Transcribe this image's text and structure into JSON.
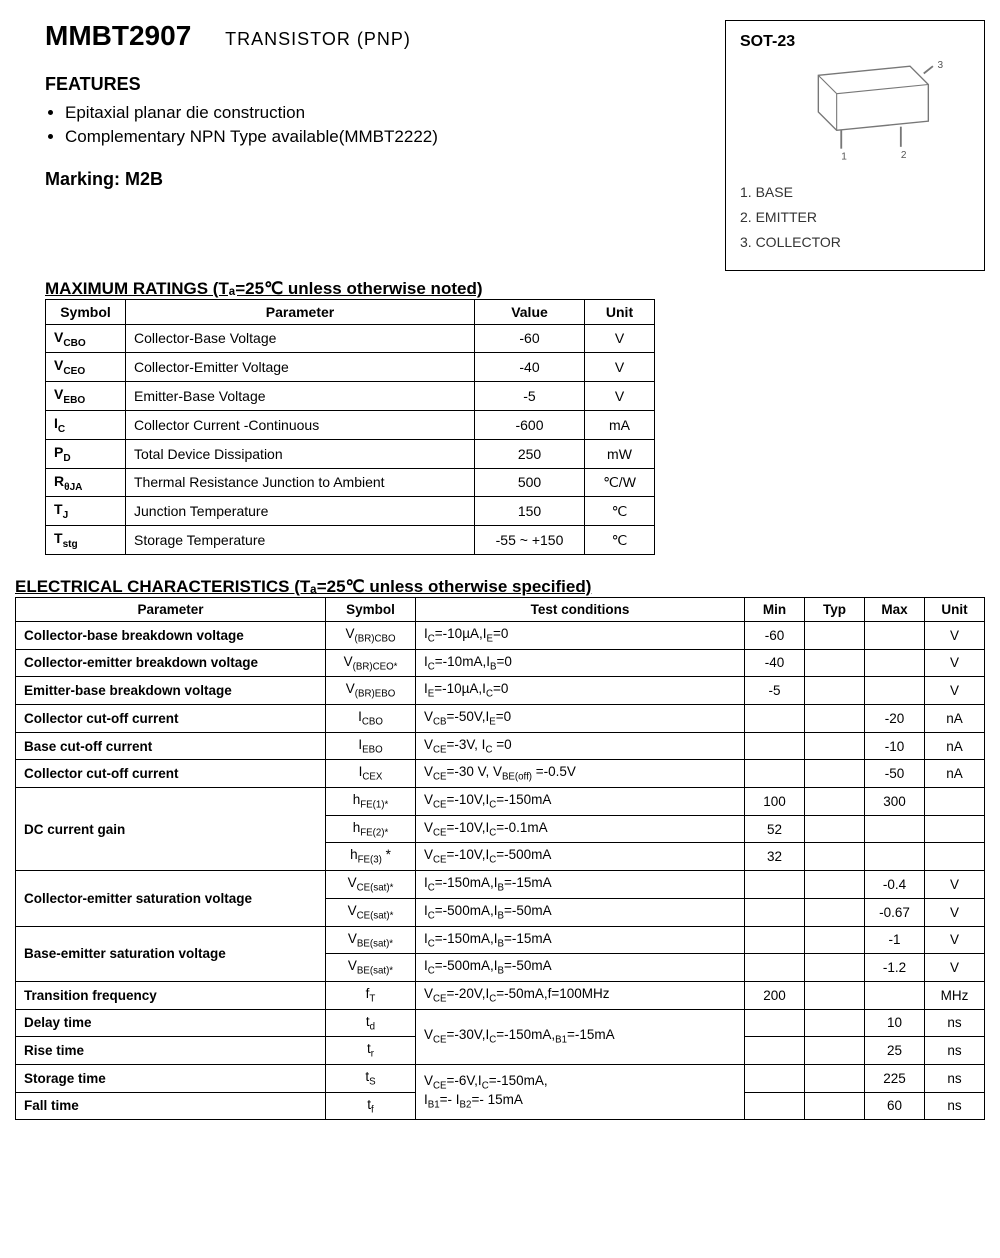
{
  "header": {
    "part": "MMBT2907",
    "subtitle": "TRANSISTOR (PNP)"
  },
  "features_head": "FEATURES",
  "features": [
    "Epitaxial planar die construction",
    "Complementary NPN Type available(MMBT2222)"
  ],
  "marking": "Marking: M2B",
  "package": {
    "name": "SOT-23",
    "pins": [
      "1. BASE",
      "2. EMITTER",
      "3. COLLECTOR"
    ]
  },
  "max_ratings_title": "MAXIMUM RATINGS (Tₐ=25℃ unless otherwise noted)",
  "max_ratings": {
    "columns": [
      "Symbol",
      "Parameter",
      "Value",
      "Unit"
    ],
    "rows": [
      {
        "sym_main": "V",
        "sym_sub": "CBO",
        "param": "Collector-Base Voltage",
        "value": "-60",
        "unit": "V"
      },
      {
        "sym_main": "V",
        "sym_sub": "CEO",
        "param": "Collector-Emitter Voltage",
        "value": "-40",
        "unit": "V"
      },
      {
        "sym_main": "V",
        "sym_sub": "EBO",
        "param": "Emitter-Base Voltage",
        "value": "-5",
        "unit": "V"
      },
      {
        "sym_main": "I",
        "sym_sub": "C",
        "param": "Collector Current -Continuous",
        "value": "-600",
        "unit": "mA"
      },
      {
        "sym_main": "P",
        "sym_sub": "D",
        "param": "Total Device Dissipation",
        "value": "250",
        "unit": "mW"
      },
      {
        "sym_main": "R",
        "sym_sub": "θJA",
        "param": "Thermal Resistance Junction to Ambient",
        "value": "500",
        "unit": "℃/W"
      },
      {
        "sym_main": "T",
        "sym_sub": "J",
        "param": "Junction Temperature",
        "value": "150",
        "unit": "℃"
      },
      {
        "sym_main": "T",
        "sym_sub": "stg",
        "param": "Storage Temperature",
        "value": "-55 ~ +150",
        "unit": "℃"
      }
    ]
  },
  "elec_title": "ELECTRICAL CHARACTERISTICS (Tₐ=25℃ unless otherwise specified)",
  "elec": {
    "columns": [
      "Parameter",
      "Symbol",
      "Test conditions",
      "Min",
      "Typ",
      "Max",
      "Unit"
    ],
    "rows": [
      {
        "param": "Collector-base breakdown voltage",
        "sym": "V<sub>(BR)CBO</sub>",
        "cond": "I<sub>C</sub>=-10µA,I<sub>E</sub>=0",
        "min": "-60",
        "typ": "",
        "max": "",
        "unit": "V",
        "bold": true
      },
      {
        "param": "Collector-emitter breakdown voltage",
        "sym": "V<sub>(BR)CEO*</sub>",
        "cond": "I<sub>C</sub>=-10mA,I<sub>B</sub>=0",
        "min": "-40",
        "typ": "",
        "max": "",
        "unit": "V",
        "bold": true
      },
      {
        "param": "Emitter-base breakdown voltage",
        "sym": "V<sub>(BR)EBO</sub>",
        "cond": "I<sub>E</sub>=-10µA,I<sub>C</sub>=0",
        "min": "-5",
        "typ": "",
        "max": "",
        "unit": "V",
        "bold": true
      },
      {
        "param": "Collector cut-off current",
        "sym": "I<sub>CBO</sub>",
        "cond": "V<sub>CB</sub>=-50V,I<sub>E</sub>=0",
        "min": "",
        "typ": "",
        "max": "-20",
        "unit": "nA",
        "bold": true
      },
      {
        "param": "Base cut-off current",
        "sym": "I<sub>EBO</sub>",
        "cond": "V<sub>CE</sub>=-3V, I<sub>C</sub> =0",
        "min": "",
        "typ": "",
        "max": "-10",
        "unit": "nA",
        "bold": true
      },
      {
        "param": "Collector cut-off current",
        "sym": "I<sub>CEX</sub>",
        "cond": "V<sub>CE</sub>=-30 V, V<sub>BE(off)</sub> =-0.5V",
        "min": "",
        "typ": "",
        "max": "-50",
        "unit": "nA",
        "bold": true
      }
    ]
  },
  "dc_gain": {
    "param": "DC current gain",
    "rows": [
      {
        "sym": "h<sub>FE(1)*</sub>",
        "cond": "V<sub>CE</sub>=-10V,I<sub>C</sub>=-150mA",
        "min": "100",
        "typ": "",
        "max": "300",
        "unit": ""
      },
      {
        "sym": "h<sub>FE(2)*</sub>",
        "cond": "V<sub>CE</sub>=-10V,I<sub>C</sub>=-0.1mA",
        "min": "52",
        "typ": "",
        "max": "",
        "unit": ""
      },
      {
        "sym": "h<sub>FE(3)</sub> *",
        "cond": "V<sub>CE</sub>=-10V,I<sub>C</sub>=-500mA",
        "min": "32",
        "typ": "",
        "max": "",
        "unit": ""
      }
    ]
  },
  "ce_sat": {
    "param": "Collector-emitter saturation voltage",
    "rows": [
      {
        "sym": "V<sub>CE(sat)*</sub>",
        "cond": "I<sub>C</sub>=-150mA,I<sub>B</sub>=-15mA",
        "min": "",
        "typ": "",
        "max": "-0.4",
        "unit": "V"
      },
      {
        "sym": "V<sub>CE(sat)*</sub>",
        "cond": "I<sub>C</sub>=-500mA,I<sub>B</sub>=-50mA",
        "min": "",
        "typ": "",
        "max": "-0.67",
        "unit": "V"
      }
    ]
  },
  "be_sat": {
    "param": "Base-emitter saturation voltage",
    "rows": [
      {
        "sym": "V<sub>BE(sat)*</sub>",
        "cond": "I<sub>C</sub>=-150mA,I<sub>B</sub>=-15mA",
        "min": "",
        "typ": "",
        "max": "-1",
        "unit": "V"
      },
      {
        "sym": "V<sub>BE(sat)*</sub>",
        "cond": "I<sub>C</sub>=-500mA,I<sub>B</sub>=-50mA",
        "min": "",
        "typ": "",
        "max": "-1.2",
        "unit": "V"
      }
    ]
  },
  "transition": {
    "param": "Transition frequency",
    "sym": "f<sub>T</sub>",
    "cond": "V<sub>CE</sub>=-20V,I<sub>C</sub>=-50mA,f=100MHz",
    "min": "200",
    "typ": "",
    "max": "",
    "unit": "MHz"
  },
  "timing": {
    "cond1": "V<sub>CE</sub>=-30V,I<sub>C</sub>=-150mA,<sub>B1</sub>=-15mA",
    "cond2": "V<sub>CE</sub>=-6V,I<sub>C</sub>=-150mA,<br>I<sub>B1</sub>=- I<sub>B2</sub>=- 15mA",
    "rows": [
      {
        "param": "Delay time",
        "sym": "t<sub>d</sub>",
        "max": "10",
        "unit": "ns"
      },
      {
        "param": "Rise time",
        "sym": "t<sub>r</sub>",
        "max": "25",
        "unit": "ns"
      },
      {
        "param": "Storage time",
        "sym": "t<sub>S</sub>",
        "max": "225",
        "unit": "ns"
      },
      {
        "param": "Fall time",
        "sym": "t<sub>f</sub>",
        "max": "60",
        "unit": "ns"
      }
    ]
  },
  "colors": {
    "text": "#000000",
    "border": "#000000",
    "bg": "#ffffff"
  }
}
